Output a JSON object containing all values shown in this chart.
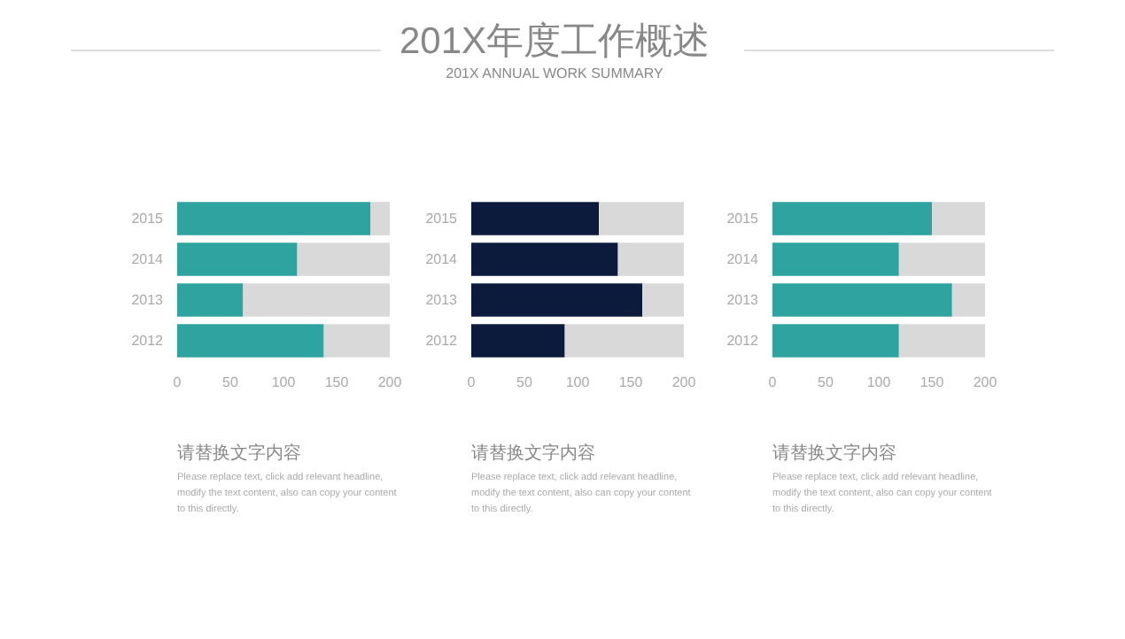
{
  "chart_data": [
    {
      "type": "bar",
      "orientation": "horizontal",
      "stacked": true,
      "categories": [
        "2015",
        "2014",
        "2013",
        "2012"
      ],
      "xlim": [
        0,
        200
      ],
      "xticks": [
        0,
        50,
        100,
        150,
        200
      ],
      "series": [
        {
          "color": "#2ea3a0",
          "values": [
            182,
            113,
            62,
            138
          ]
        },
        {
          "color": "#d9d9d9",
          "values": [
            18,
            87,
            138,
            62
          ]
        }
      ],
      "annotations": [
        "请替换文字内容",
        "Please replace text, click add relevant headline, modify the text content, also can copy your content to this directly."
      ]
    },
    {
      "type": "bar",
      "title": "201X年度工作概述",
      "subtitle": "201X ANNUAL WORK SUMMARY",
      "orientation": "horizontal",
      "stacked": true,
      "categories": [
        "2015",
        "2014",
        "2013",
        "2012"
      ],
      "xlim": [
        0,
        200
      ],
      "xticks": [
        0,
        50,
        100,
        150,
        200
      ],
      "series": [
        {
          "color": "#0c1a3b",
          "values": [
            120,
            138,
            161,
            88
          ]
        },
        {
          "color": "#d9d9d9",
          "values": [
            80,
            62,
            39,
            112
          ]
        }
      ],
      "annotations": [
        "请替换文字内容",
        "Please replace text, click add relevant headline, modify the text content, also can copy your content to this directly."
      ]
    },
    {
      "type": "bar",
      "orientation": "horizontal",
      "stacked": true,
      "categories": [
        "2015",
        "2014",
        "2013",
        "2012"
      ],
      "xlim": [
        0,
        200
      ],
      "xticks": [
        0,
        50,
        100,
        150,
        200
      ],
      "series": [
        {
          "color": "#2ea3a0",
          "values": [
            150,
            119,
            169,
            119
          ]
        },
        {
          "color": "#d9d9d9",
          "values": [
            50,
            81,
            31,
            81
          ]
        }
      ],
      "annotations": [
        "请替换文字内容",
        "Please replace text, click add relevant headline, modify the text content, also can copy your content to this directly."
      ]
    }
  ]
}
